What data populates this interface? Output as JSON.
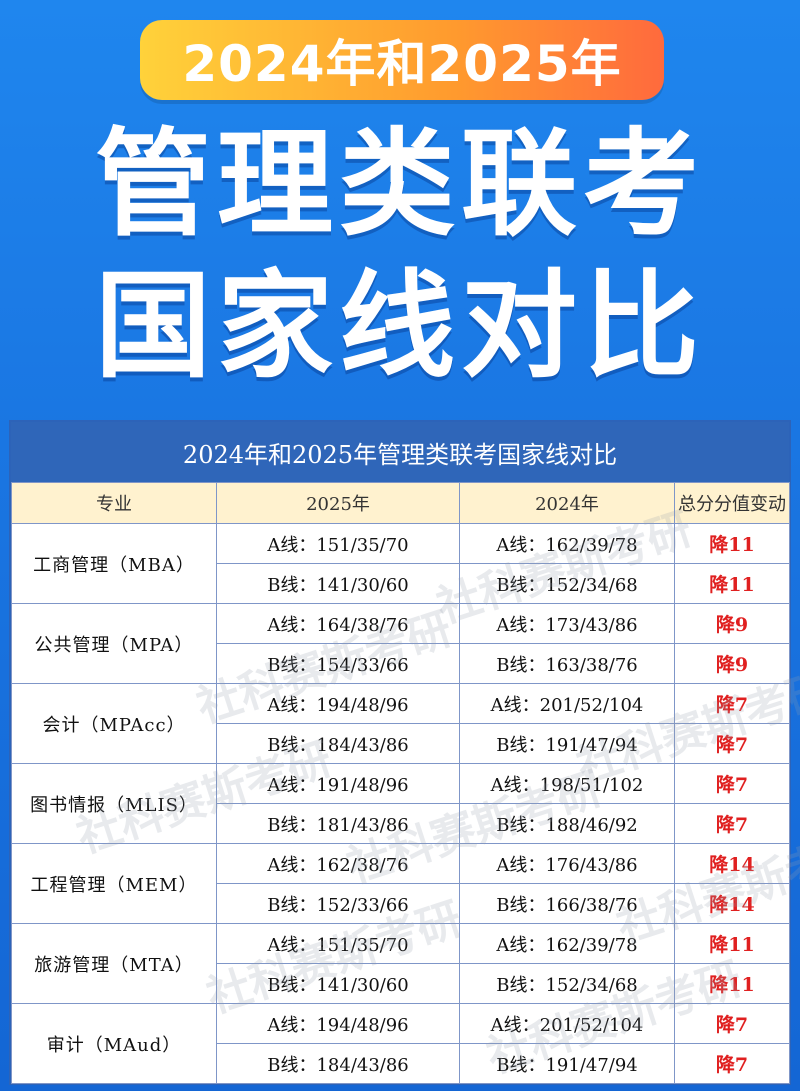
{
  "badge": {
    "text": "2024年和2025年"
  },
  "headline": {
    "line1": "管理类联考",
    "line2": "国家线对比"
  },
  "table": {
    "title": "2024年和2025年管理类联考国家线对比",
    "headers": {
      "major": "专业",
      "y2025": "2025年",
      "y2024": "2024年",
      "change": "总分分值变动"
    },
    "groups": [
      {
        "major": "工商管理（MBA）",
        "rows": [
          {
            "y2025": "A线：151/35/70",
            "y2024": "A线：162/39/78",
            "change": "降11"
          },
          {
            "y2025": "B线：141/30/60",
            "y2024": "B线：152/34/68",
            "change": "降11"
          }
        ]
      },
      {
        "major": "公共管理（MPA）",
        "rows": [
          {
            "y2025": "A线：164/38/76",
            "y2024": "A线：173/43/86",
            "change": "降9"
          },
          {
            "y2025": "B线：154/33/66",
            "y2024": "B线：163/38/76",
            "change": "降9"
          }
        ]
      },
      {
        "major": "会计（MPAcc）",
        "rows": [
          {
            "y2025": "A线：194/48/96",
            "y2024": "A线：201/52/104",
            "change": "降7"
          },
          {
            "y2025": "B线：184/43/86",
            "y2024": "B线：191/47/94",
            "change": "降7"
          }
        ]
      },
      {
        "major": "图书情报（MLIS）",
        "rows": [
          {
            "y2025": "A线：191/48/96",
            "y2024": "A线：198/51/102",
            "change": "降7"
          },
          {
            "y2025": "B线：181/43/86",
            "y2024": "B线：188/46/92",
            "change": "降7"
          }
        ]
      },
      {
        "major": "工程管理（MEM）",
        "rows": [
          {
            "y2025": "A线：162/38/76",
            "y2024": "A线：176/43/86",
            "change": "降14"
          },
          {
            "y2025": "B线：152/33/66",
            "y2024": "B线：166/38/76",
            "change": "降14"
          }
        ]
      },
      {
        "major": "旅游管理（MTA）",
        "rows": [
          {
            "y2025": "A线：151/35/70",
            "y2024": "A线：162/39/78",
            "change": "降11"
          },
          {
            "y2025": "B线：141/30/60",
            "y2024": "B线：152/34/68",
            "change": "降11"
          }
        ]
      },
      {
        "major": "审计（MAud）",
        "rows": [
          {
            "y2025": "A线：194/48/96",
            "y2024": "A线：201/52/104",
            "change": "降7"
          },
          {
            "y2025": "B线：184/43/86",
            "y2024": "B线：191/47/94",
            "change": "降7"
          }
        ]
      }
    ]
  },
  "watermark": {
    "text": "社科赛斯考研"
  },
  "colors": {
    "accent": "#2f66b9",
    "decrease": "#e02020",
    "badge_start": "#ffd23a",
    "badge_end": "#ff6a3d"
  }
}
